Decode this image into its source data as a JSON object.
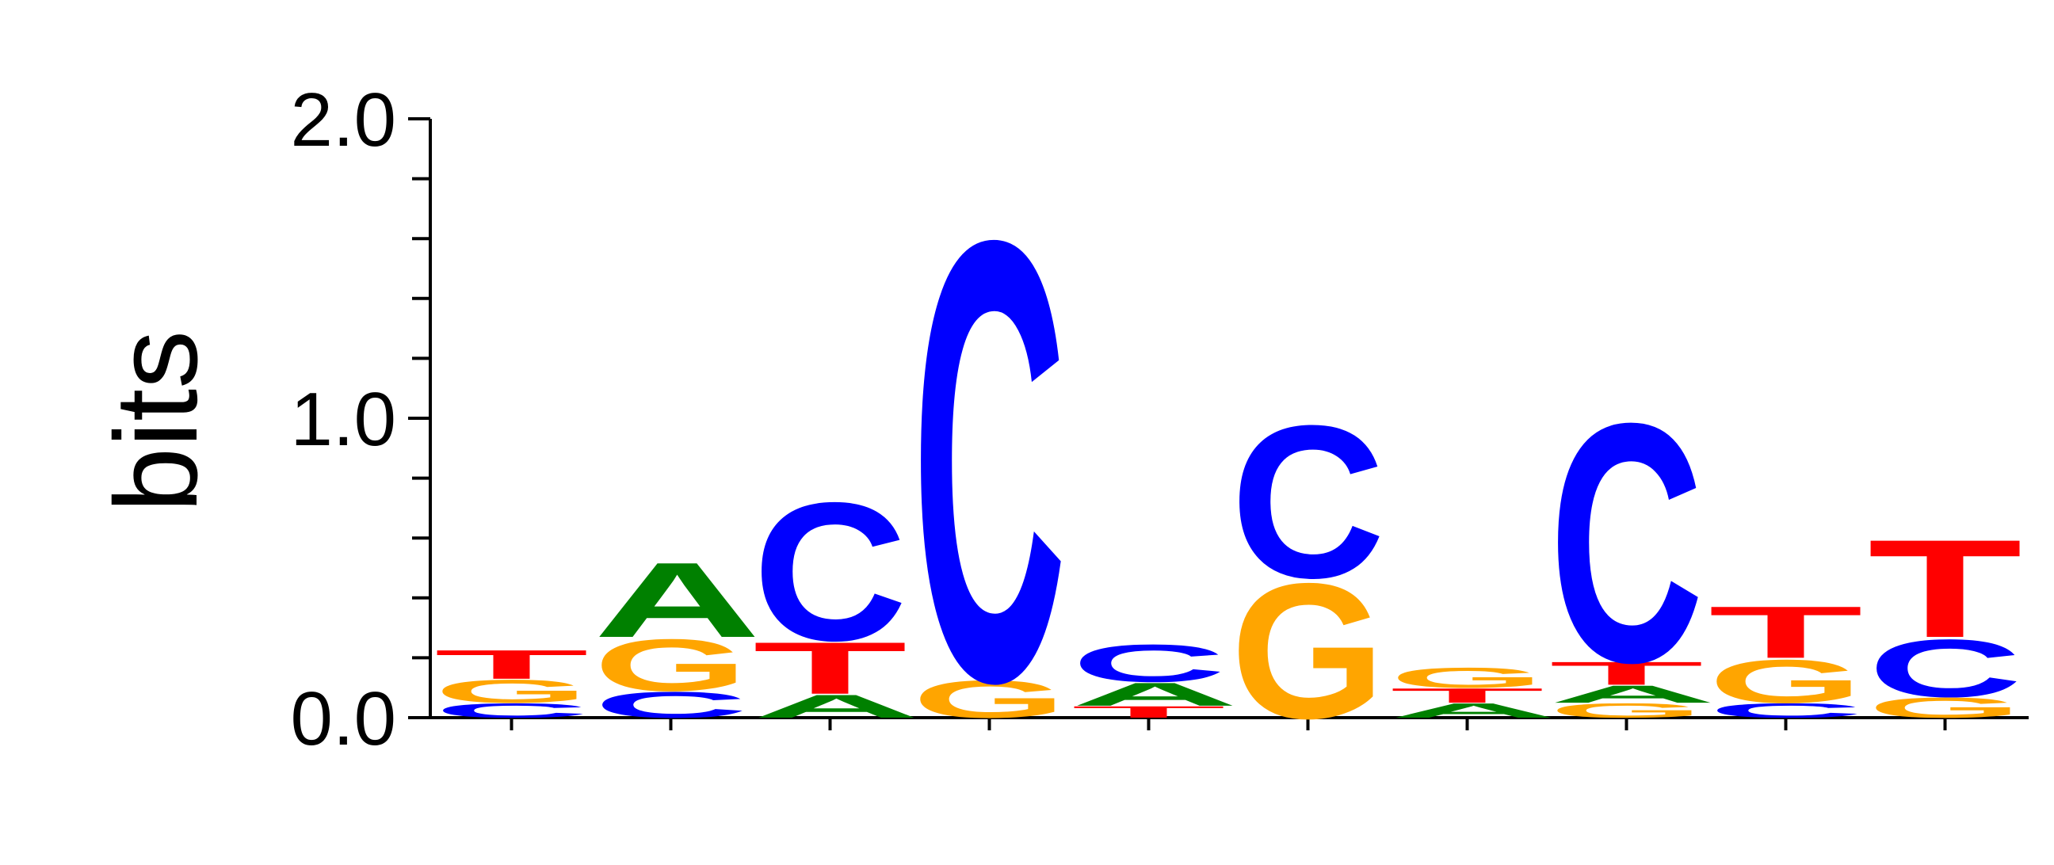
{
  "chart_data": {
    "type": "sequence-logo",
    "ylabel": "bits",
    "ylim": [
      0,
      2.0
    ],
    "yticks": [
      {
        "value": 0,
        "label": "0.0"
      },
      {
        "value": 1,
        "label": "1.0"
      },
      {
        "value": 2,
        "label": "2.0"
      }
    ],
    "minor_tick_step": 0.2,
    "colors": {
      "A": "#008000",
      "C": "#0000ff",
      "G": "#ffa500",
      "T": "#ff0000"
    },
    "positions": [
      [
        {
          "base": "C",
          "bits": 0.05
        },
        {
          "base": "G",
          "bits": 0.08
        },
        {
          "base": "T",
          "bits": 0.1
        }
      ],
      [
        {
          "base": "C",
          "bits": 0.09
        },
        {
          "base": "G",
          "bits": 0.18
        },
        {
          "base": "A",
          "bits": 0.26
        }
      ],
      [
        {
          "base": "A",
          "bits": 0.08
        },
        {
          "base": "T",
          "bits": 0.18
        },
        {
          "base": "C",
          "bits": 0.48
        }
      ],
      [
        {
          "base": "G",
          "bits": 0.13
        },
        {
          "base": "C",
          "bits": 1.53
        }
      ],
      [
        {
          "base": "T",
          "bits": 0.04
        },
        {
          "base": "A",
          "bits": 0.08
        },
        {
          "base": "C",
          "bits": 0.13
        }
      ],
      [
        {
          "base": "G",
          "bits": 0.47
        },
        {
          "base": "C",
          "bits": 0.53
        }
      ],
      [
        {
          "base": "A",
          "bits": 0.05
        },
        {
          "base": "T",
          "bits": 0.05
        },
        {
          "base": "G",
          "bits": 0.07
        }
      ],
      [
        {
          "base": "G",
          "bits": 0.05
        },
        {
          "base": "A",
          "bits": 0.06
        },
        {
          "base": "T",
          "bits": 0.08
        },
        {
          "base": "C",
          "bits": 0.83
        }
      ],
      [
        {
          "base": "C",
          "bits": 0.05
        },
        {
          "base": "G",
          "bits": 0.15
        },
        {
          "base": "T",
          "bits": 0.18
        }
      ],
      [
        {
          "base": "G",
          "bits": 0.07
        },
        {
          "base": "C",
          "bits": 0.2
        },
        {
          "base": "T",
          "bits": 0.34
        }
      ]
    ]
  }
}
